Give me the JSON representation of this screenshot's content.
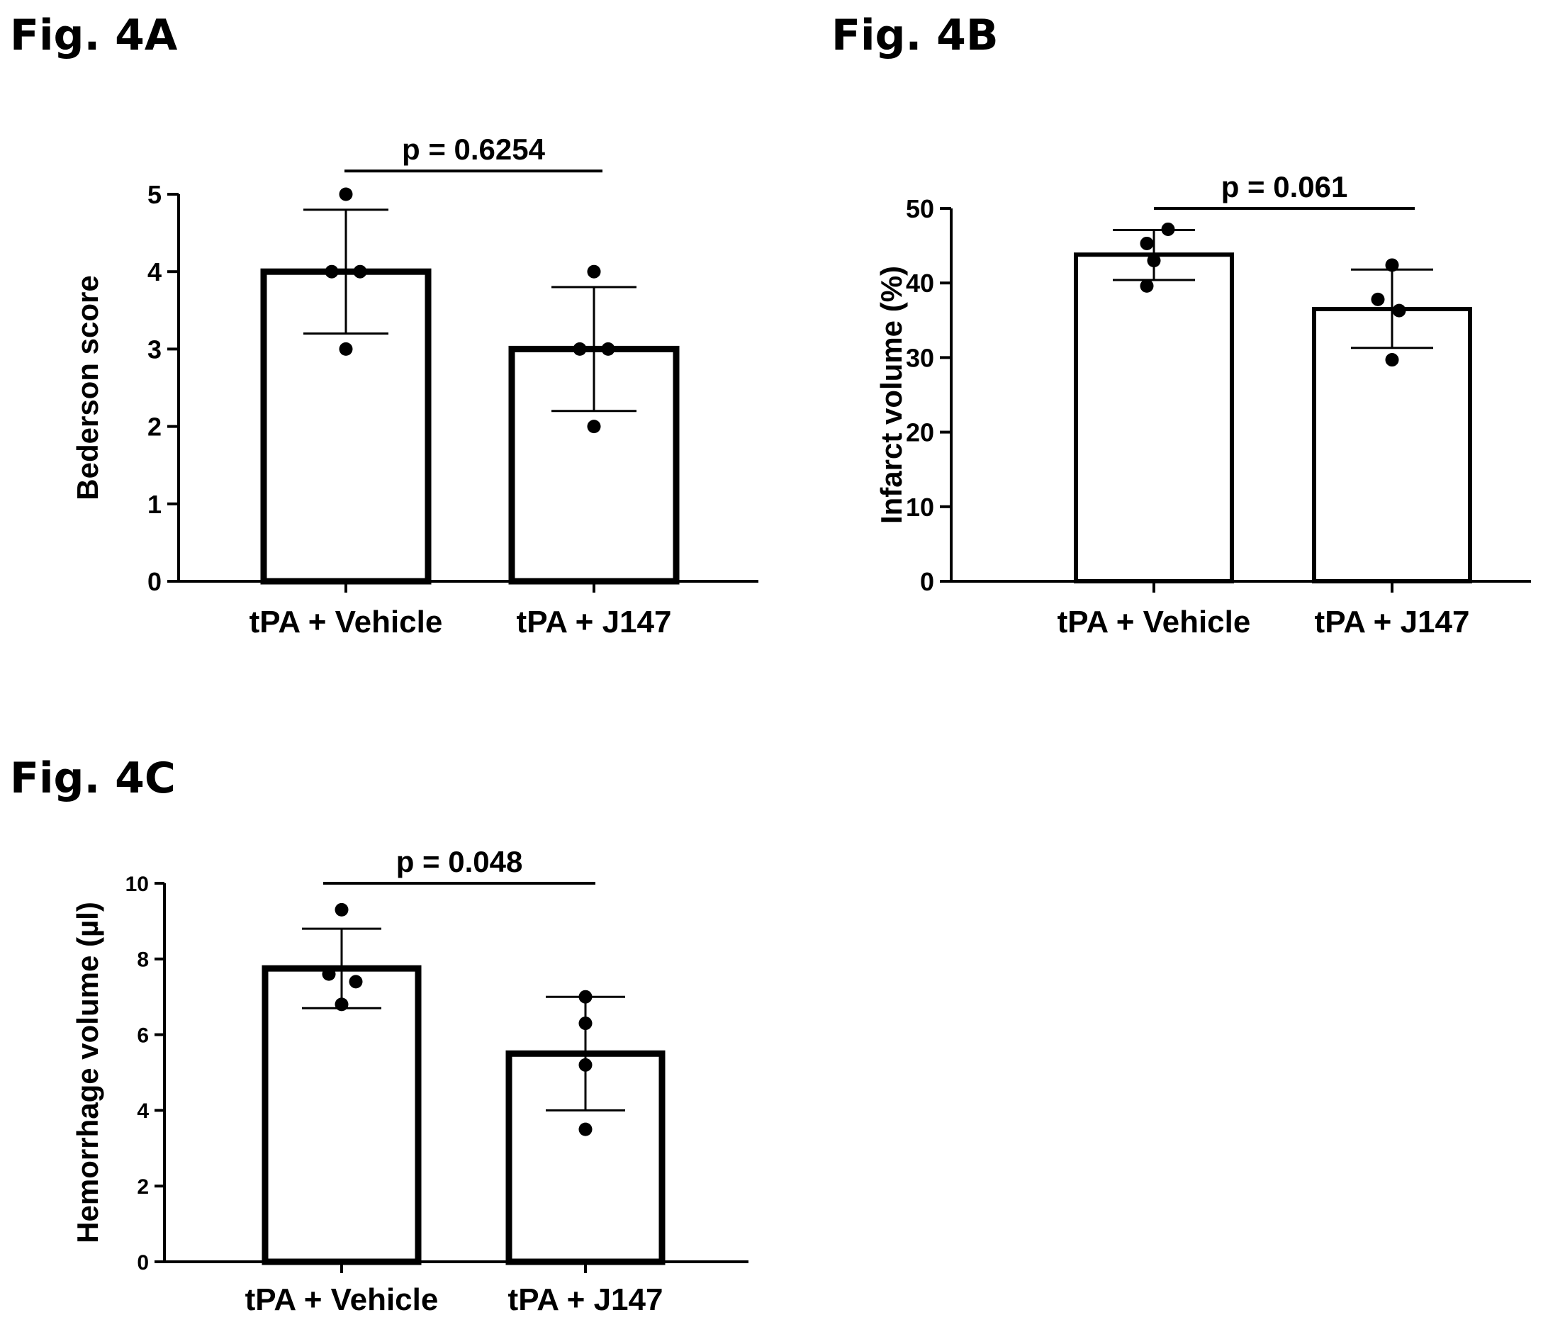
{
  "figure_labels": {
    "a": "Fig. 4A",
    "b": "Fig. 4B",
    "c": "Fig. 4C"
  },
  "colors": {
    "bar_fill": "#ffffff",
    "stroke": "#000000",
    "point": "#000000"
  },
  "chart_data": [
    {
      "id": "4A",
      "type": "bar",
      "title": "",
      "xlabel": "",
      "ylabel": "Bederson score",
      "categories": [
        "tPA + Vehicle",
        "tPA + J147"
      ],
      "values": [
        4,
        3
      ],
      "error_bars": [
        [
          3.2,
          4.8
        ],
        [
          2.2,
          3.8
        ]
      ],
      "points": [
        [
          5,
          4,
          4,
          3
        ],
        [
          4,
          3,
          3,
          2
        ]
      ],
      "ylim": [
        0,
        5
      ],
      "yticks": [
        0,
        1,
        2,
        3,
        4,
        5
      ],
      "ytick_labels": [
        "0",
        "1",
        "2",
        "3",
        "4",
        "5"
      ],
      "annotation": "p = 0.6254",
      "bracket_value": 5.3,
      "grid": false,
      "legend": "none"
    },
    {
      "id": "4B",
      "type": "bar",
      "title": "",
      "xlabel": "",
      "ylabel": "Infarct volume (%)",
      "categories": [
        "tPA + Vehicle",
        "tPA + J147"
      ],
      "values": [
        43.8,
        36.5
      ],
      "error_bars": [
        [
          40.4,
          47.1
        ],
        [
          31.3,
          41.8
        ]
      ],
      "points": [
        [
          47.2,
          45.3,
          43.0,
          39.6
        ],
        [
          42.4,
          37.8,
          36.3,
          29.7
        ]
      ],
      "ylim": [
        0,
        50
      ],
      "yticks": [
        0,
        10,
        20,
        30,
        40,
        50
      ],
      "ytick_labels": [
        "0",
        "10",
        "20",
        "30",
        "40",
        "50"
      ],
      "annotation": "p = 0.061",
      "bracket_value": 50,
      "grid": false,
      "legend": "none"
    },
    {
      "id": "4C",
      "type": "bar",
      "title": "",
      "xlabel": "",
      "ylabel": "Hemorrhage volume (µl)",
      "categories": [
        "tPA + Vehicle",
        "tPA + J147"
      ],
      "values": [
        7.75,
        5.5
      ],
      "error_bars": [
        [
          6.7,
          8.8
        ],
        [
          4.0,
          7.0
        ]
      ],
      "points": [
        [
          9.3,
          7.6,
          7.4,
          6.8
        ],
        [
          7.0,
          6.3,
          5.2,
          3.5
        ]
      ],
      "ylim": [
        0,
        10
      ],
      "yticks": [
        0,
        2,
        4,
        6,
        8,
        10
      ],
      "ytick_labels": [
        "0",
        "2",
        "4",
        "6",
        "8",
        "10"
      ],
      "annotation": "p = 0.048",
      "bracket_value": 10,
      "grid": false,
      "legend": "none"
    }
  ]
}
